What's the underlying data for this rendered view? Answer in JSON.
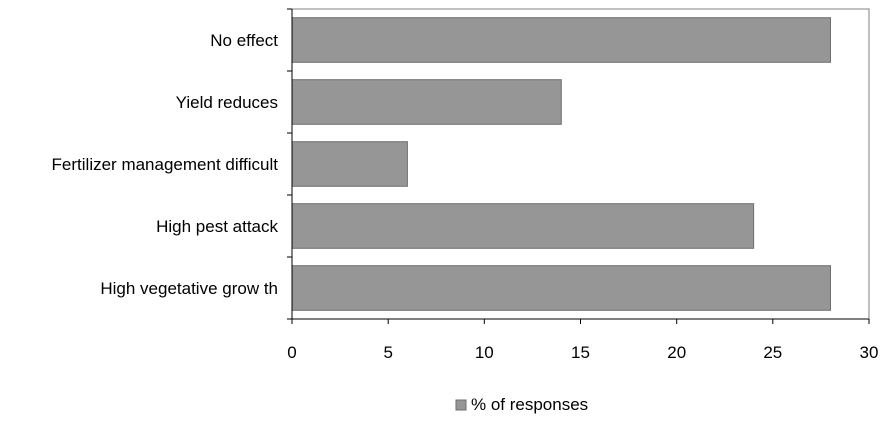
{
  "chart_data": {
    "type": "bar",
    "orientation": "horizontal",
    "categories": [
      "No effect",
      "Yield reduces",
      "Fertilizer management difficult",
      "High pest attack",
      "High vegetative grow th"
    ],
    "series": [
      {
        "name": "% of responses",
        "values": [
          28,
          14,
          6,
          24,
          28
        ]
      }
    ],
    "xlim": [
      0,
      30
    ],
    "x_ticks": [
      0,
      5,
      10,
      15,
      20,
      25,
      30
    ],
    "grid": false,
    "legend_position": "bottom",
    "bar_color": "#969696",
    "bar_edge_color": "#6e6e6e",
    "axis_color": "#000000",
    "plot_border_color": "#808080"
  }
}
